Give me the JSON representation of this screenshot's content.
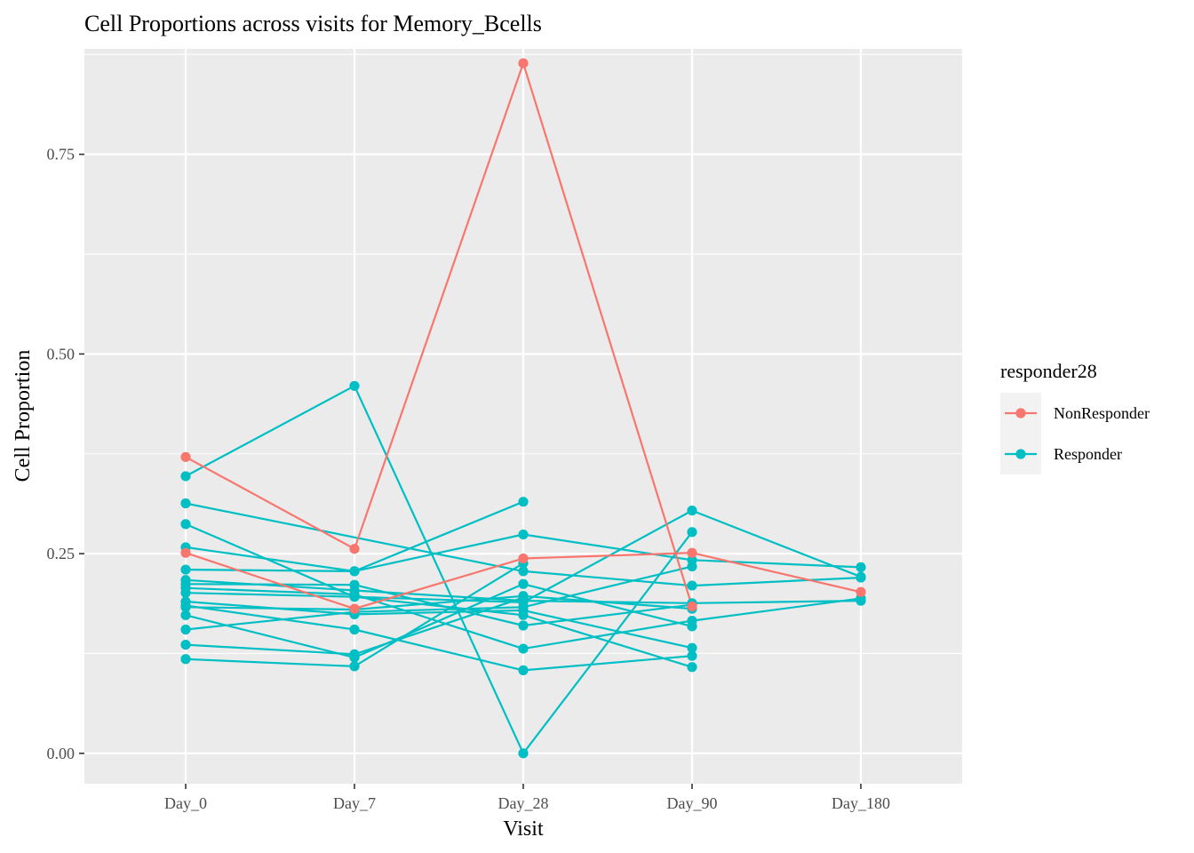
{
  "chart_data": {
    "type": "line",
    "title": "Cell Proportions across visits for Memory_Bcells",
    "xlabel": "Visit",
    "ylabel": "Cell Proportion",
    "categories": [
      "Day_0",
      "Day_7",
      "Day_28",
      "Day_90",
      "Day_180"
    ],
    "ylim": [
      -0.038,
      0.882
    ],
    "yticks": [
      0.0,
      0.25,
      0.5,
      0.75
    ],
    "ytick_labels": [
      "0.00",
      "0.25",
      "0.50",
      "0.75"
    ],
    "grid": true,
    "legend": {
      "title": "responder28",
      "position": "right",
      "entries": [
        {
          "label": "NonResponder",
          "color": "#F8766D"
        },
        {
          "label": "Responder",
          "color": "#00BFC4"
        }
      ]
    },
    "series": [
      {
        "group": "NonResponder",
        "values": [
          0.371,
          0.256,
          0.864,
          0.184,
          null
        ]
      },
      {
        "group": "NonResponder",
        "values": [
          0.251,
          0.181,
          0.244,
          0.251,
          0.202
        ]
      },
      {
        "group": "Responder",
        "values": [
          0.347,
          0.46,
          0.0,
          0.277,
          null
        ]
      },
      {
        "group": "Responder",
        "values": [
          0.313,
          null,
          0.228,
          0.21,
          0.22
        ]
      },
      {
        "group": "Responder",
        "values": [
          0.287,
          0.196,
          0.173,
          0.108,
          null
        ]
      },
      {
        "group": "Responder",
        "values": [
          0.258,
          0.228,
          0.274,
          0.242,
          0.233
        ]
      },
      {
        "group": "Responder",
        "values": [
          0.23,
          0.228,
          0.315,
          null,
          null
        ]
      },
      {
        "group": "Responder",
        "values": [
          0.217,
          0.204,
          0.191,
          0.188,
          0.191
        ]
      },
      {
        "group": "Responder",
        "values": [
          0.212,
          0.211,
          0.16,
          0.186,
          null
        ]
      },
      {
        "group": "Responder",
        "values": [
          0.207,
          0.199,
          0.131,
          0.166,
          0.194
        ]
      },
      {
        "group": "Responder",
        "values": [
          0.201,
          0.196,
          0.189,
          0.304,
          0.221
        ]
      },
      {
        "group": "Responder",
        "values": [
          0.19,
          0.174,
          0.179,
          0.132,
          null
        ]
      },
      {
        "group": "Responder",
        "values": [
          0.185,
          0.155,
          0.104,
          0.122,
          null
        ]
      },
      {
        "group": "Responder",
        "values": [
          0.183,
          0.18,
          0.197,
          0.181,
          null
        ]
      },
      {
        "group": "Responder",
        "values": [
          0.173,
          0.12,
          0.212,
          0.159,
          null
        ]
      },
      {
        "group": "Responder",
        "values": [
          0.155,
          0.177,
          0.183,
          0.234,
          null
        ]
      },
      {
        "group": "Responder",
        "values": [
          0.136,
          0.124,
          0.195,
          null,
          null
        ]
      },
      {
        "group": "Responder",
        "values": [
          0.118,
          0.109,
          0.238,
          null,
          null
        ]
      }
    ]
  }
}
